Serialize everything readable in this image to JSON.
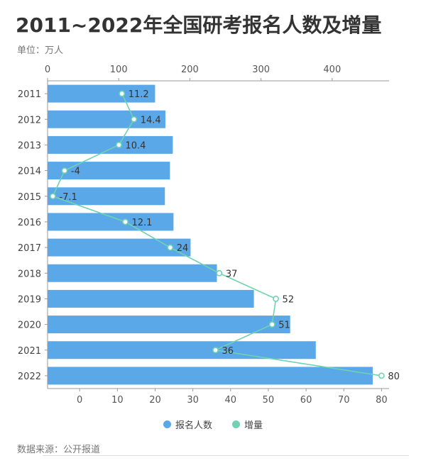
{
  "title": "2011~2022年全国研考报名人数及增量",
  "unit_label": "单位：万人",
  "source_label": "数据来源：公开报道",
  "colors": {
    "bar": "#5ba8e8",
    "line": "#6fd2b0",
    "text": "#333333",
    "axis": "#999999"
  },
  "chart_data": {
    "type": "bar",
    "orientation": "horizontal",
    "categories": [
      "2011",
      "2012",
      "2013",
      "2014",
      "2015",
      "2016",
      "2017",
      "2018",
      "2019",
      "2020",
      "2021",
      "2022"
    ],
    "series": [
      {
        "name": "报名人数",
        "type": "bar",
        "axis": "top",
        "values": [
          151.1,
          165.6,
          176,
          172,
          164.9,
          177,
          201,
          238,
          290,
          341,
          377,
          457
        ]
      },
      {
        "name": "增量",
        "type": "line",
        "axis": "bottom",
        "values": [
          11.2,
          14.4,
          10.4,
          -4,
          -7.1,
          12.1,
          24,
          37,
          52,
          51,
          36,
          80
        ]
      }
    ],
    "top_axis": {
      "min": 0,
      "max": 480,
      "ticks": [
        0,
        100,
        200,
        300,
        400
      ]
    },
    "bottom_axis": {
      "min": -8.5,
      "max": 82,
      "ticks": [
        0,
        10,
        20,
        30,
        40,
        50,
        60,
        70,
        80
      ]
    },
    "legend": "bottom"
  }
}
